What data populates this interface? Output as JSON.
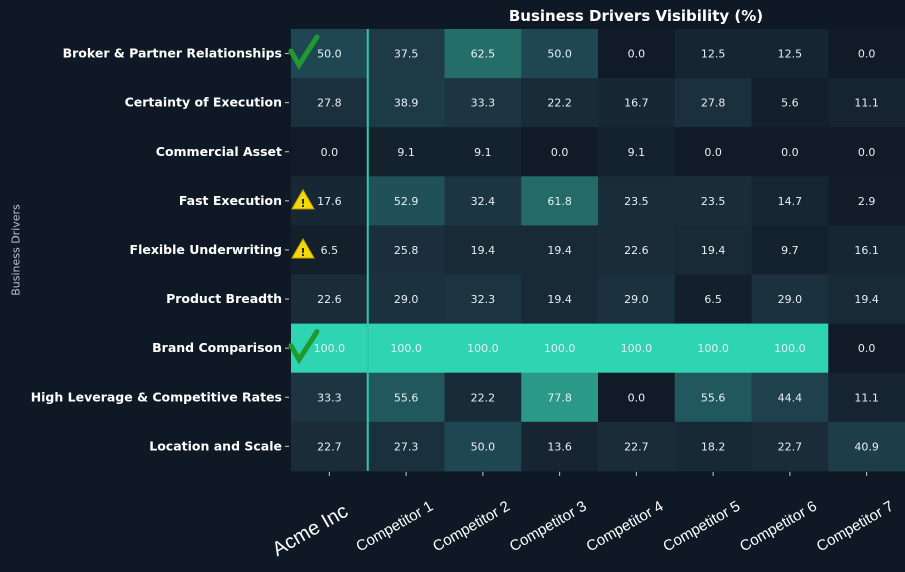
{
  "chart_data": {
    "type": "heatmap",
    "title": "Business Drivers Visibility (%)",
    "xlabel": "",
    "ylabel": "Business Drivers",
    "columns": [
      "Acme Inc",
      "Competitor 1",
      "Competitor 2",
      "Competitor 3",
      "Competitor 4",
      "Competitor 5",
      "Competitor 6",
      "Competitor 7"
    ],
    "rows": [
      "Broker & Partner Relationships",
      "Certainty of Execution",
      "Commercial Asset",
      "Fast Execution",
      "Flexible Underwriting",
      "Product Breadth",
      "Brand Comparison",
      "High Leverage & Competitive Rates",
      "Location and Scale"
    ],
    "values": [
      [
        50.0,
        37.5,
        62.5,
        50.0,
        0.0,
        12.5,
        12.5,
        0.0
      ],
      [
        27.8,
        38.9,
        33.3,
        22.2,
        16.7,
        27.8,
        5.6,
        11.1
      ],
      [
        0.0,
        9.1,
        9.1,
        0.0,
        9.1,
        0.0,
        0.0,
        0.0
      ],
      [
        17.6,
        52.9,
        32.4,
        61.8,
        23.5,
        23.5,
        14.7,
        2.9
      ],
      [
        6.5,
        25.8,
        19.4,
        19.4,
        22.6,
        19.4,
        9.7,
        16.1
      ],
      [
        22.6,
        29.0,
        32.3,
        19.4,
        29.0,
        6.5,
        29.0,
        19.4
      ],
      [
        100.0,
        100.0,
        100.0,
        100.0,
        100.0,
        100.0,
        100.0,
        0.0
      ],
      [
        33.3,
        55.6,
        22.2,
        77.8,
        0.0,
        55.6,
        44.4,
        11.1
      ],
      [
        22.7,
        27.3,
        50.0,
        13.6,
        22.7,
        18.2,
        22.7,
        40.9
      ]
    ],
    "value_range": [
      0,
      100
    ],
    "colors": {
      "low": "#111b27",
      "high": "#2fd4b2",
      "separator": "#2ec9a8",
      "background": "#0f1926"
    },
    "row_markers": {
      "0": "check-icon",
      "3": "warning-icon",
      "4": "warning-icon",
      "6": "check-icon"
    },
    "marker_colors": {
      "check-icon": "#1e9a2e",
      "warning-icon": "#f5d90a"
    }
  }
}
